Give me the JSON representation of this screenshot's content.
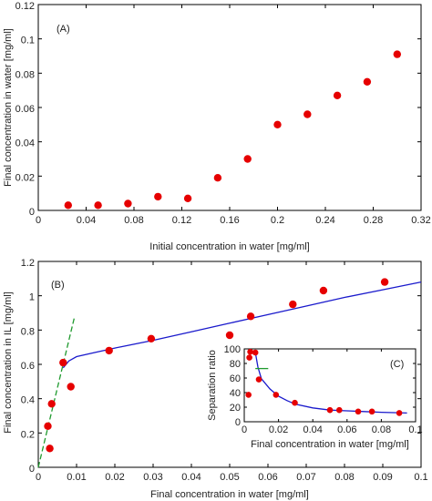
{
  "chart_data": [
    {
      "id": "A",
      "type": "scatter",
      "panel_label": "(A)",
      "xlabel": "Initial concentration in water [mg/ml]",
      "ylabel": "Final concentration in water [mg/ml]",
      "xlim": [
        0,
        0.32
      ],
      "ylim": [
        0,
        0.12
      ],
      "xticks": [
        0,
        0.04,
        0.08,
        0.12,
        0.16,
        0.2,
        0.24,
        0.28,
        0.32
      ],
      "xtick_labels": [
        "0",
        "0.04",
        "0.08",
        "0.12",
        "0.16",
        "0.2",
        "0.24",
        "0.28",
        "0.32"
      ],
      "yticks": [
        0,
        0.02,
        0.04,
        0.06,
        0.08,
        0.1,
        0.12
      ],
      "ytick_labels": [
        "0",
        "0.02",
        "0.04",
        "0.06",
        "0.08",
        "0.1",
        "0.12"
      ],
      "points": [
        {
          "x": 0.025,
          "y": 0.003
        },
        {
          "x": 0.05,
          "y": 0.003
        },
        {
          "x": 0.075,
          "y": 0.004
        },
        {
          "x": 0.1,
          "y": 0.008
        },
        {
          "x": 0.125,
          "y": 0.007
        },
        {
          "x": 0.15,
          "y": 0.019
        },
        {
          "x": 0.175,
          "y": 0.03
        },
        {
          "x": 0.2,
          "y": 0.05
        },
        {
          "x": 0.225,
          "y": 0.056
        },
        {
          "x": 0.25,
          "y": 0.067
        },
        {
          "x": 0.275,
          "y": 0.075
        },
        {
          "x": 0.3,
          "y": 0.091
        }
      ],
      "colors": {
        "points": "#e60000"
      }
    },
    {
      "id": "B",
      "type": "scatter",
      "panel_label": "(B)",
      "xlabel": "Final concentration in water [mg/ml]",
      "ylabel": "Final concentration in IL [mg/ml]",
      "xlim": [
        0,
        0.1
      ],
      "ylim": [
        0,
        1.2
      ],
      "xticks": [
        0,
        0.01,
        0.02,
        0.03,
        0.04,
        0.05,
        0.06,
        0.07,
        0.08,
        0.09,
        0.1
      ],
      "xtick_labels": [
        "0",
        "0.01",
        "0.02",
        "0.03",
        "0.04",
        "0.05",
        "0.06",
        "0.07",
        "0.08",
        "0.09",
        "0.1"
      ],
      "yticks": [
        0,
        0.2,
        0.4,
        0.6,
        0.8,
        1,
        1.2
      ],
      "ytick_labels": [
        "0",
        "0.2",
        "0.4",
        "0.6",
        "0.8",
        "1",
        "1.2"
      ],
      "points": [
        {
          "x": 0.0025,
          "y": 0.24
        },
        {
          "x": 0.003,
          "y": 0.11
        },
        {
          "x": 0.0035,
          "y": 0.37
        },
        {
          "x": 0.0065,
          "y": 0.61
        },
        {
          "x": 0.0085,
          "y": 0.47
        },
        {
          "x": 0.0185,
          "y": 0.68
        },
        {
          "x": 0.0295,
          "y": 0.75
        },
        {
          "x": 0.05,
          "y": 0.77
        },
        {
          "x": 0.0555,
          "y": 0.88
        },
        {
          "x": 0.0665,
          "y": 0.95
        },
        {
          "x": 0.0745,
          "y": 1.03
        },
        {
          "x": 0.0905,
          "y": 1.08
        }
      ],
      "fit_curve": [
        {
          "x": 0.0065,
          "y": 0.58
        },
        {
          "x": 0.008,
          "y": 0.62
        },
        {
          "x": 0.01,
          "y": 0.645
        },
        {
          "x": 0.015,
          "y": 0.67
        },
        {
          "x": 0.02,
          "y": 0.695
        },
        {
          "x": 0.03,
          "y": 0.74
        },
        {
          "x": 0.04,
          "y": 0.79
        },
        {
          "x": 0.05,
          "y": 0.84
        },
        {
          "x": 0.06,
          "y": 0.89
        },
        {
          "x": 0.07,
          "y": 0.94
        },
        {
          "x": 0.08,
          "y": 0.99
        },
        {
          "x": 0.09,
          "y": 1.035
        },
        {
          "x": 0.1,
          "y": 1.08
        }
      ],
      "linear_line": [
        {
          "x": 0.0,
          "y": 0.0
        },
        {
          "x": 0.0095,
          "y": 0.88
        }
      ],
      "colors": {
        "points": "#e60000",
        "fit": "#1a1acc",
        "linear": "#1f9a2e"
      }
    },
    {
      "id": "C",
      "type": "scatter",
      "panel_label": "(C)",
      "xlabel": "Final concentration in water [mg/ml]",
      "ylabel": "Separation ratio",
      "xlim": [
        0,
        0.1
      ],
      "ylim": [
        0,
        100
      ],
      "xticks": [
        0,
        0.02,
        0.04,
        0.06,
        0.08,
        0.1
      ],
      "xtick_labels": [
        "0",
        "0.02",
        "0.04",
        "0.06",
        "0.08",
        "0.1"
      ],
      "yticks": [
        0,
        20,
        40,
        60,
        80,
        100
      ],
      "ytick_labels": [
        "0",
        "20",
        "40",
        "60",
        "80",
        "100"
      ],
      "points": [
        {
          "x": 0.0025,
          "y": 37
        },
        {
          "x": 0.003,
          "y": 88
        },
        {
          "x": 0.0035,
          "y": 96
        },
        {
          "x": 0.0065,
          "y": 95
        },
        {
          "x": 0.0085,
          "y": 58
        },
        {
          "x": 0.0185,
          "y": 37
        },
        {
          "x": 0.0295,
          "y": 26
        },
        {
          "x": 0.05,
          "y": 16
        },
        {
          "x": 0.0555,
          "y": 16
        },
        {
          "x": 0.0665,
          "y": 14
        },
        {
          "x": 0.0745,
          "y": 14
        },
        {
          "x": 0.0905,
          "y": 12
        }
      ],
      "fit_curve": [
        {
          "x": 0.0065,
          "y": 95
        },
        {
          "x": 0.008,
          "y": 75
        },
        {
          "x": 0.01,
          "y": 59
        },
        {
          "x": 0.015,
          "y": 45
        },
        {
          "x": 0.02,
          "y": 35
        },
        {
          "x": 0.025,
          "y": 29
        },
        {
          "x": 0.03,
          "y": 24
        },
        {
          "x": 0.04,
          "y": 19
        },
        {
          "x": 0.05,
          "y": 16
        },
        {
          "x": 0.06,
          "y": 15
        },
        {
          "x": 0.07,
          "y": 14
        },
        {
          "x": 0.08,
          "y": 13
        },
        {
          "x": 0.095,
          "y": 12
        }
      ],
      "linear_line": [
        {
          "x": 0.0065,
          "y": 73
        },
        {
          "x": 0.014,
          "y": 73
        }
      ],
      "colors": {
        "points": "#e60000",
        "fit": "#1a1acc",
        "linear": "#1f9a2e"
      }
    }
  ]
}
